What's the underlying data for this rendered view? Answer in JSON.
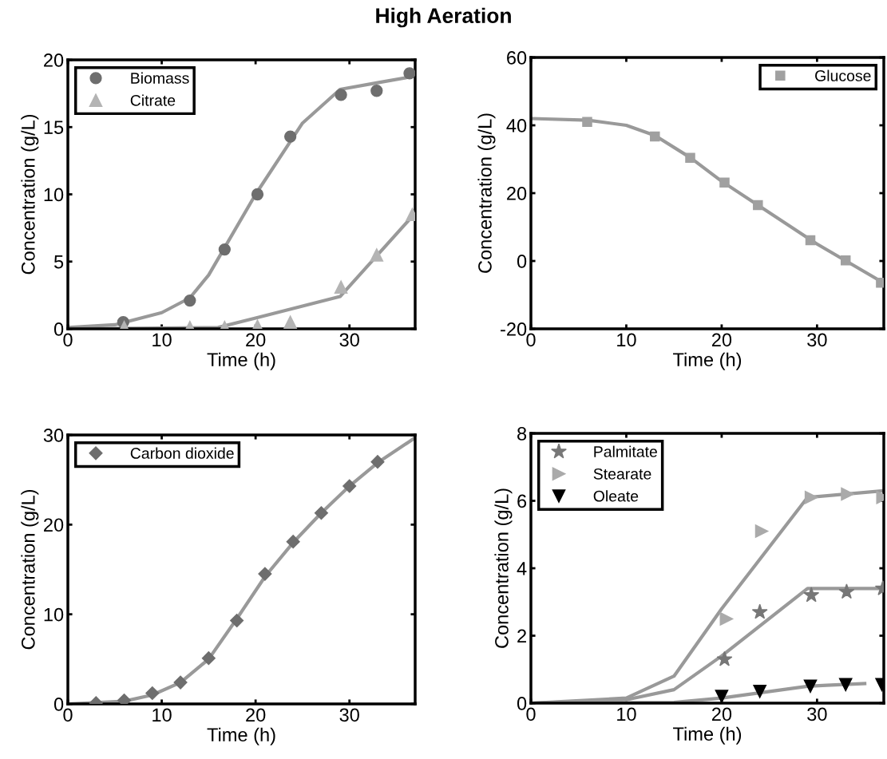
{
  "chart_data": [
    {
      "type": "scatter",
      "title": "High Aeration",
      "xlabel": "Time (h)",
      "ylabel": "Concentration (g/L)",
      "xlim": [
        0,
        37
      ],
      "xticks": [
        0,
        10,
        20,
        30
      ],
      "ylim": [
        0,
        20
      ],
      "yticks": [
        0,
        5,
        10,
        15,
        20
      ],
      "grid": false,
      "legend": "top left",
      "series": [
        {
          "name": "Biomass",
          "color": "#6e6e6e",
          "marker": "circle",
          "x": [
            5.9,
            13.0,
            16.7,
            20.2,
            23.7,
            29.1,
            32.9,
            36.4
          ],
          "values": [
            0.5,
            2.1,
            5.9,
            10.0,
            14.3,
            17.4,
            17.7,
            19.0
          ]
        },
        {
          "name": "Citrate",
          "color": "#b4b4b4",
          "marker": "triangle",
          "x": [
            6.0,
            13.0,
            16.7,
            20.2,
            23.7,
            29.1,
            32.9,
            36.7
          ],
          "values": [
            0.1,
            0.1,
            0.1,
            0.2,
            0.5,
            3.1,
            5.5,
            8.5
          ]
        },
        {
          "type": "line",
          "color": "#999999",
          "x": [
            0,
            5,
            10,
            13,
            15,
            20,
            25,
            29,
            33,
            37
          ],
          "values": [
            0.1,
            0.3,
            1.2,
            2.3,
            4.0,
            10.0,
            15.3,
            17.8,
            18.3,
            18.8
          ]
        },
        {
          "type": "line",
          "color": "#999999",
          "x": [
            0,
            16,
            20,
            29,
            37
          ],
          "values": [
            0,
            0.1,
            0.8,
            2.4,
            8.6
          ]
        }
      ]
    },
    {
      "type": "scatter",
      "xlabel": "Time (h)",
      "ylabel": "Concentration (g/L)",
      "xlim": [
        0,
        37
      ],
      "xticks": [
        0,
        10,
        20,
        30
      ],
      "ylim": [
        -20,
        60
      ],
      "yticks": [
        {
          "value": -20,
          "label": "-20"
        },
        0,
        20,
        40,
        60
      ],
      "grid": false,
      "legend": "top right",
      "series": [
        {
          "name": "Glucose",
          "color": "#a0a0a0",
          "marker": "square",
          "x": [
            5.9,
            13.0,
            16.7,
            20.3,
            23.8,
            29.3,
            33.0,
            36.7
          ],
          "values": [
            41,
            36.7,
            30.4,
            23.1,
            16.5,
            6.1,
            0.2,
            -6.4
          ]
        },
        {
          "type": "line",
          "color": "#999999",
          "x": [
            0,
            6,
            10,
            13,
            16.7,
            20,
            30,
            37
          ],
          "values": [
            42,
            41.5,
            40,
            37,
            30.5,
            23.5,
            5,
            -6.5
          ]
        }
      ]
    },
    {
      "type": "scatter",
      "xlabel": "Time (h)",
      "ylabel": "Concentration (g/L)",
      "xlim": [
        0,
        37
      ],
      "xticks": [
        0,
        10,
        20,
        30
      ],
      "ylim": [
        0,
        30
      ],
      "yticks": [
        0,
        10,
        20,
        30
      ],
      "grid": false,
      "legend": "top left",
      "series": [
        {
          "name": "Carbon dioxide",
          "color": "#6e6e6e",
          "marker": "diamond",
          "x": [
            3,
            6,
            9,
            12,
            15,
            18,
            21,
            24,
            27,
            30,
            33
          ],
          "values": [
            0.1,
            0.4,
            1.2,
            2.4,
            5.1,
            9.3,
            14.5,
            18.1,
            21.3,
            24.3,
            27.0
          ]
        },
        {
          "type": "line",
          "color": "#999999",
          "x": [
            0,
            6,
            9,
            12,
            15,
            18,
            21,
            24,
            27,
            30,
            33,
            37
          ],
          "values": [
            0,
            0.3,
            1.0,
            2.4,
            5.0,
            9.5,
            14.2,
            18.0,
            21.3,
            24.3,
            26.9,
            29.7
          ]
        }
      ]
    },
    {
      "type": "scatter",
      "xlabel": "Time (h)",
      "ylabel": "Concentration (g/L)",
      "xlim": [
        0,
        37
      ],
      "xticks": [
        0,
        10,
        20,
        30
      ],
      "ylim": [
        0,
        8
      ],
      "yticks": [
        0,
        2,
        4,
        6,
        8
      ],
      "grid": false,
      "legend": "top left",
      "series": [
        {
          "name": "Palmitate",
          "color": "#777777",
          "marker": "star",
          "x": [
            20.3,
            24.0,
            29.4,
            33.1,
            36.9
          ],
          "values": [
            1.3,
            2.7,
            3.2,
            3.3,
            3.4
          ]
        },
        {
          "name": "Stearate",
          "color": "#aaaaaa",
          "marker": "triangle_right",
          "x": [
            20.5,
            24.2,
            29.4,
            33.2,
            36.9
          ],
          "values": [
            2.5,
            5.1,
            6.1,
            6.2,
            6.1
          ]
        },
        {
          "name": "Oleate",
          "color": "#000000",
          "marker": "triangle_down",
          "x": [
            20.0,
            24.0,
            29.3,
            33.0,
            36.8
          ],
          "values": [
            0.2,
            0.35,
            0.5,
            0.55,
            0.55
          ]
        },
        {
          "type": "line",
          "color": "#999999",
          "x": [
            0,
            10,
            15,
            20,
            29,
            37
          ],
          "values": [
            0,
            0.1,
            0.4,
            1.4,
            3.4,
            3.4
          ]
        },
        {
          "type": "line",
          "color": "#999999",
          "x": [
            0,
            10,
            15,
            20,
            29,
            37
          ],
          "values": [
            0,
            0.15,
            0.8,
            2.8,
            6.1,
            6.3
          ]
        },
        {
          "type": "line",
          "color": "#999999",
          "x": [
            0,
            15,
            20,
            29,
            31,
            35
          ],
          "values": [
            0,
            0.02,
            0.15,
            0.5,
            0.53,
            0.58
          ]
        }
      ]
    }
  ]
}
